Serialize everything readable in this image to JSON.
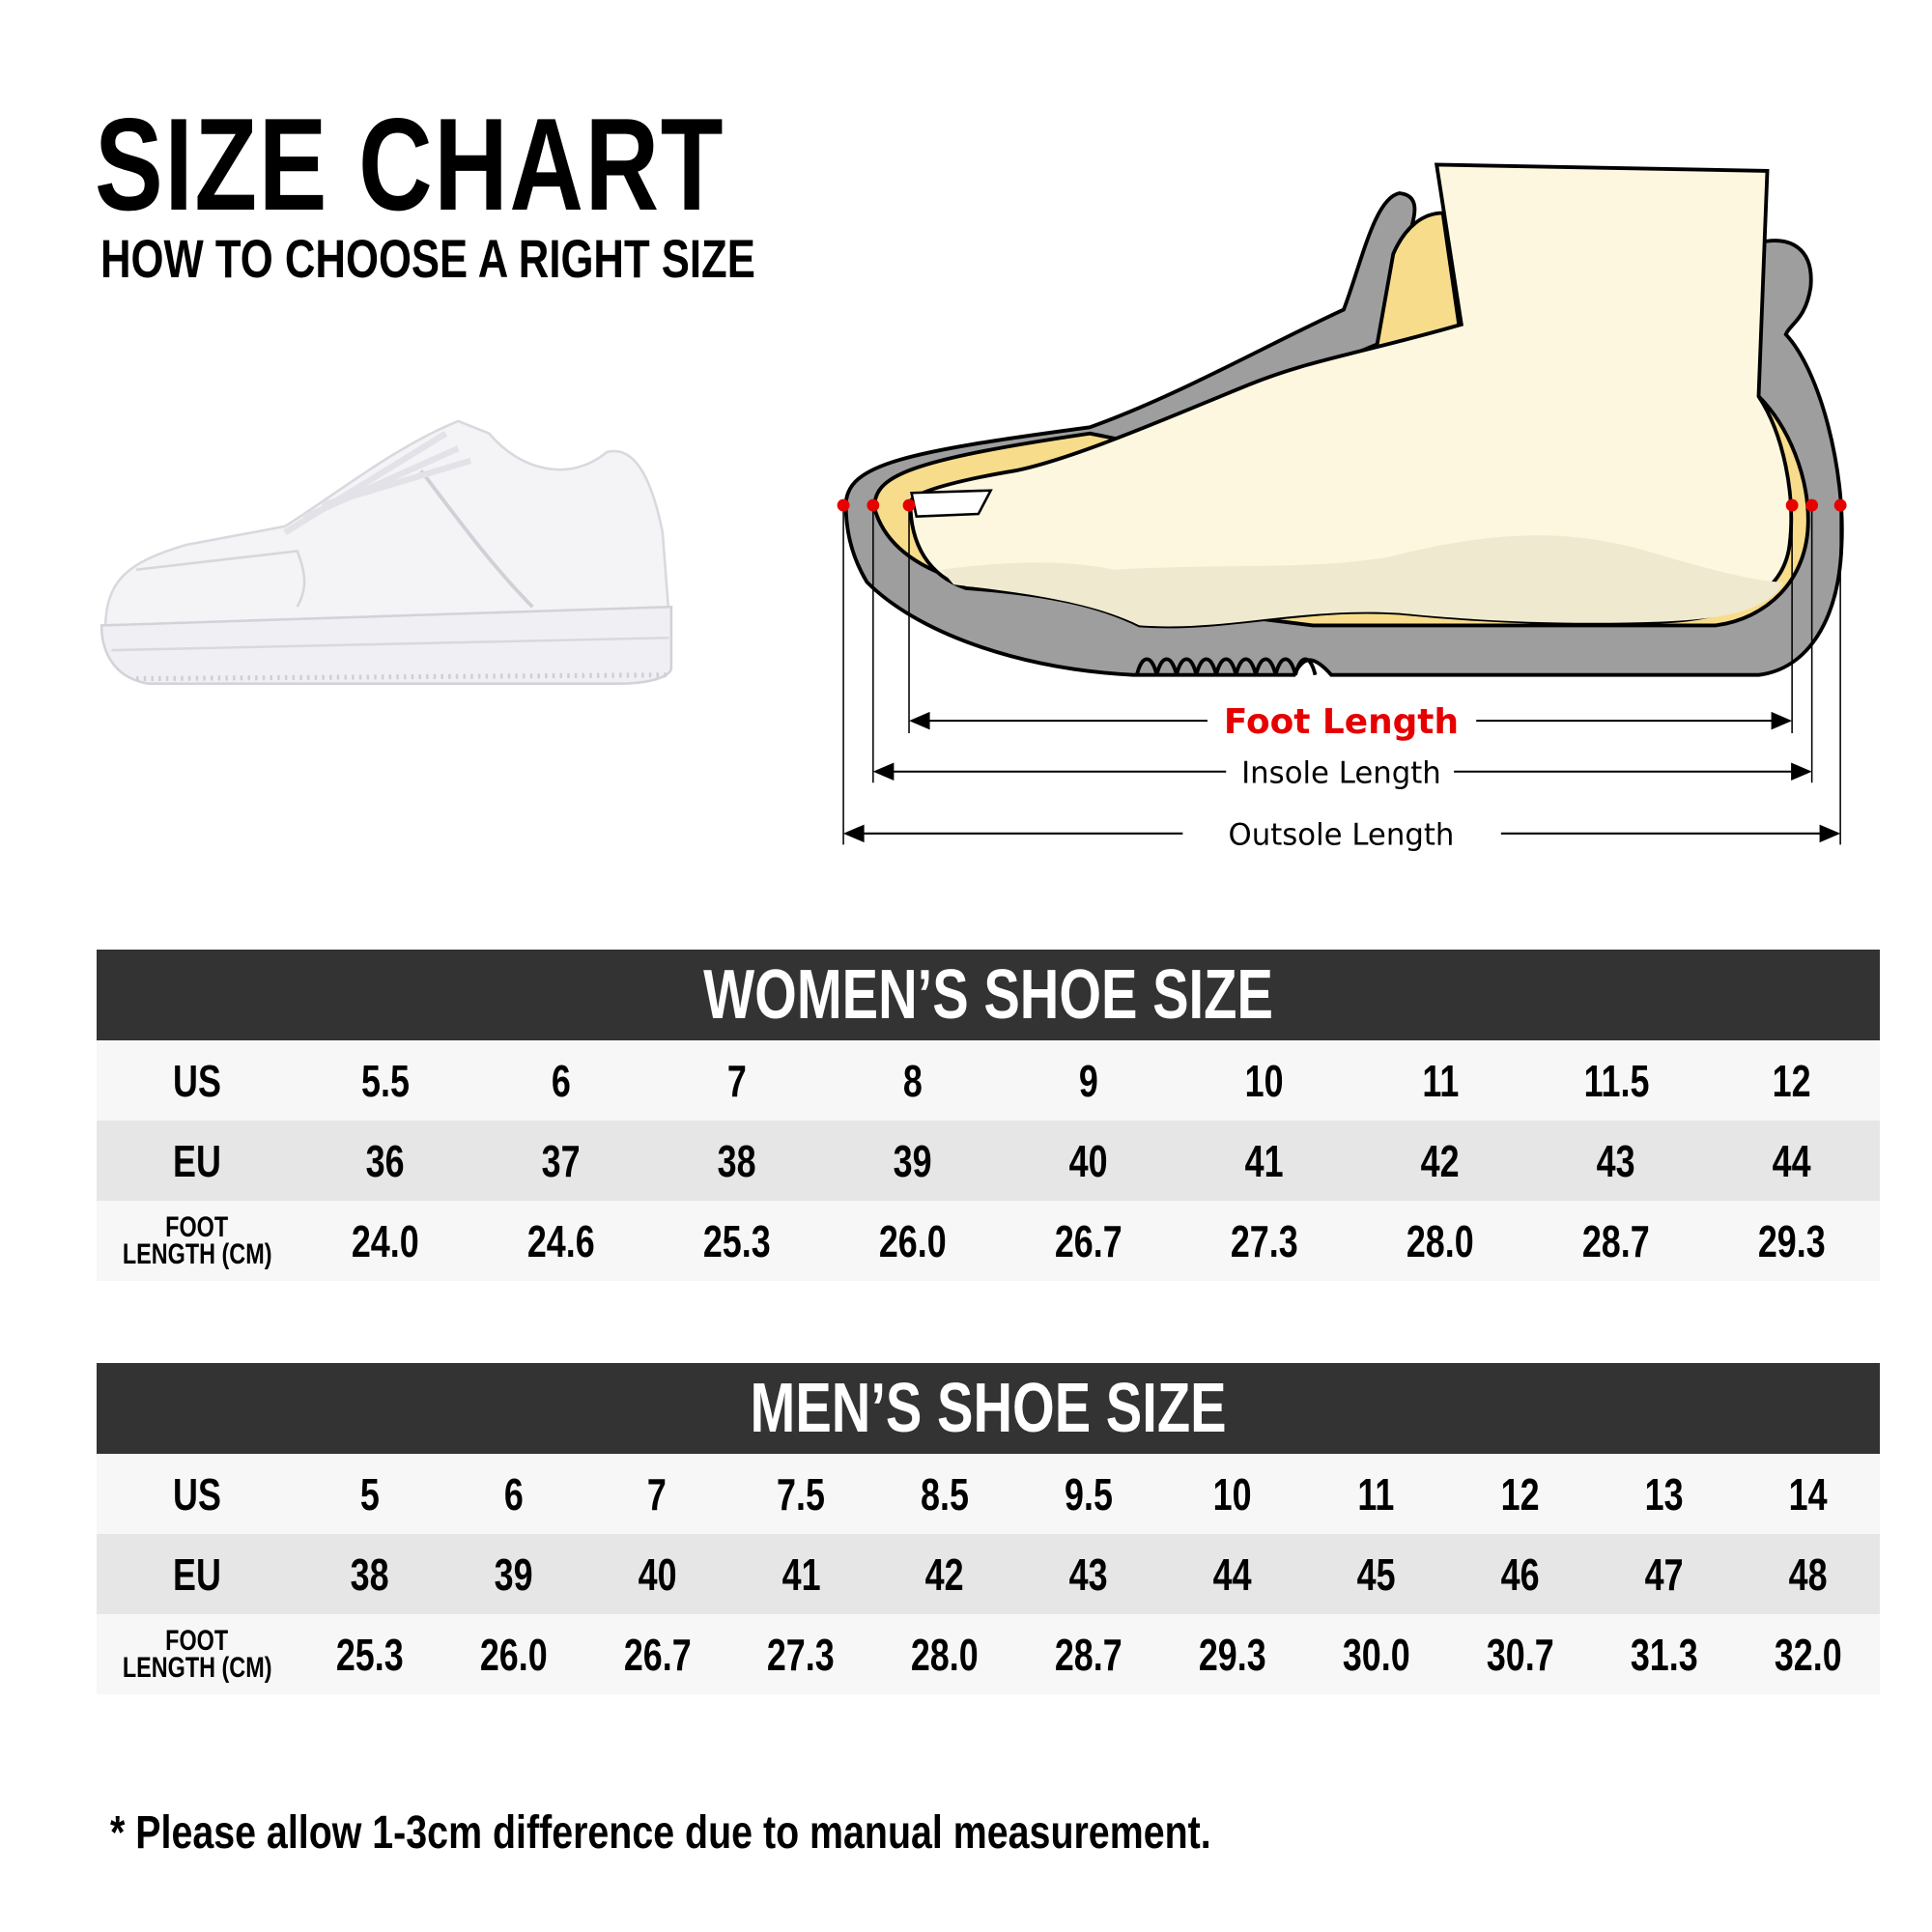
{
  "header": {
    "title": "SIZE CHART",
    "subtitle": "HOW TO CHOOSE A RIGHT SIZE"
  },
  "diagram": {
    "foot_length": "Foot Length",
    "insole_length": "Insole Length",
    "outsole_length": "Outsole Length",
    "colors": {
      "highlight": "#e60000",
      "outsole": "#9e9e9e",
      "insole": "#f7dc8c",
      "foot": "#fdf7e0"
    }
  },
  "women": {
    "title": "WOMEN’S SHOE SIZE",
    "rows": [
      {
        "label": "US",
        "values": [
          "5.5",
          "6",
          "7",
          "8",
          "9",
          "10",
          "11",
          "11.5",
          "12"
        ]
      },
      {
        "label": "EU",
        "values": [
          "36",
          "37",
          "38",
          "39",
          "40",
          "41",
          "42",
          "43",
          "44"
        ]
      },
      {
        "label": "FOOT LENGTH (CM)",
        "label_lines": [
          "FOOT",
          "LENGTH (CM)"
        ],
        "values": [
          "24.0",
          "24.6",
          "25.3",
          "26.0",
          "26.7",
          "27.3",
          "28.0",
          "28.7",
          "29.3"
        ]
      }
    ]
  },
  "men": {
    "title": "MEN’S SHOE SIZE",
    "rows": [
      {
        "label": "US",
        "values": [
          "5",
          "6",
          "7",
          "7.5",
          "8.5",
          "9.5",
          "10",
          "11",
          "12",
          "13",
          "14"
        ]
      },
      {
        "label": "EU",
        "values": [
          "38",
          "39",
          "40",
          "41",
          "42",
          "43",
          "44",
          "45",
          "46",
          "47",
          "48"
        ]
      },
      {
        "label": "FOOT LENGTH (CM)",
        "label_lines": [
          "FOOT",
          "LENGTH (CM)"
        ],
        "values": [
          "25.3",
          "26.0",
          "26.7",
          "27.3",
          "28.0",
          "28.7",
          "29.3",
          "30.0",
          "30.7",
          "31.3",
          "32.0"
        ]
      }
    ]
  },
  "footnote": "* Please allow 1-3cm difference due to manual measurement."
}
